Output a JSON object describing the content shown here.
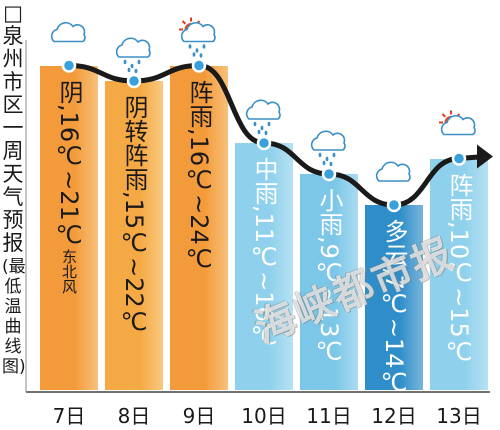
{
  "title_box": "□",
  "title": "泉州市区一周天气预报",
  "subtitle": "(最低温曲线图)",
  "watermark": "海峡都市报",
  "chart_data": {
    "type": "bar",
    "categories": [
      "7日",
      "8日",
      "9日",
      "10日",
      "11日",
      "12日",
      "13日"
    ],
    "low_temps": [
      16,
      15,
      16,
      11,
      9,
      7,
      10
    ],
    "high_temps": [
      21,
      22,
      24,
      16,
      13,
      14,
      15
    ],
    "weather": [
      "阴",
      "阴转阵雨",
      "阵雨",
      "中雨",
      "小雨",
      "多云",
      "阵雨"
    ],
    "labels": [
      "阴,16℃~21℃",
      "阴转阵雨,15℃~22℃",
      "阵雨,16℃~24℃",
      "中雨,11℃~16℃",
      "小雨,9℃~13℃",
      "多云,7℃~14℃",
      "阵雨,10℃~15℃"
    ],
    "wind_note": "东北风",
    "icons": [
      "cloud-icon",
      "rain-cloud-icon",
      "sun-rain-icon",
      "rain-cloud-icon",
      "rain-cloud-icon",
      "cloud-icon",
      "sun-cloud-icon"
    ],
    "bar_colors": [
      "#f39b3b",
      "#f5a944",
      "#f39b3b",
      "#8fd1ec",
      "#7cc7e8",
      "#2f8ec9",
      "#8fd1ec"
    ],
    "curve_color": "#1a1a1a",
    "marker_color": "#3aa0dc"
  }
}
